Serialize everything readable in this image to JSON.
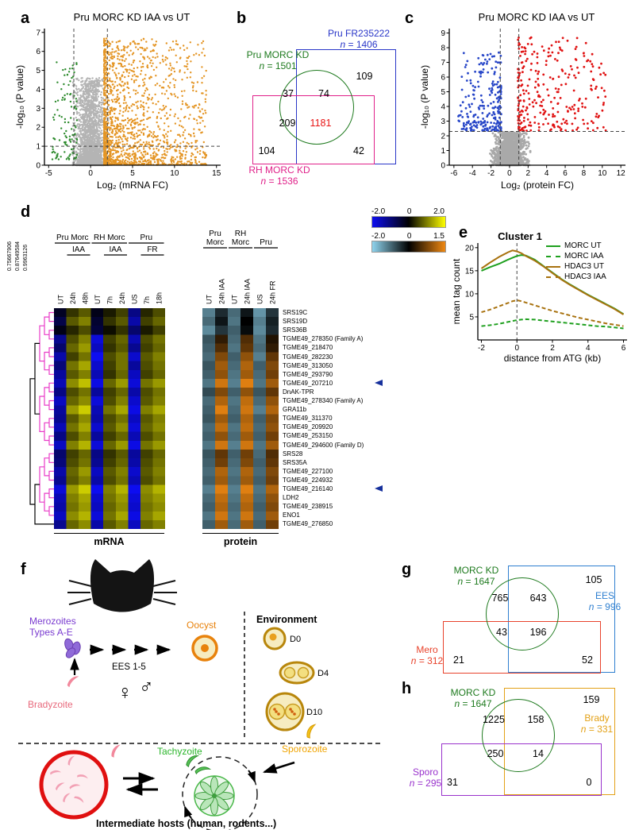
{
  "page": {
    "letters": {
      "a": "a",
      "b": "b",
      "c": "c",
      "d": "d",
      "e": "e",
      "f": "f",
      "g": "g",
      "h": "h"
    }
  },
  "chart_data": {
    "a": {
      "type": "scatter",
      "title": "Pru MORC KD IAA vs UT",
      "xlabel": "Log₂ (mRNA FC)",
      "ylabel": "-log₁₀ (P value)",
      "xlim": [
        -5.5,
        15.5
      ],
      "ylim": [
        0,
        7.2
      ],
      "xticks": [
        -5,
        0,
        5,
        10,
        15
      ],
      "yticks": [
        0,
        1,
        2,
        3,
        4,
        5,
        6,
        7
      ],
      "vlines": [
        -2,
        2
      ],
      "hlines": [
        1
      ],
      "seed": 11,
      "point_size": 2.4,
      "clusters": [
        {
          "label": "not significant",
          "color": "#b4b4b4",
          "n": 2600,
          "x": {
            "mode": "gauss",
            "mu": 0,
            "sigma": 0.85,
            "min": -2.1,
            "max": 2.1
          },
          "y": {
            "min": 0,
            "max": 4.6,
            "pow": 2.6
          }
        },
        {
          "label": "mRNA up",
          "color": "#e49524",
          "n": 1600,
          "x": {
            "mode": "skew",
            "min": 1.6,
            "max": 13.8,
            "pow": 2.2
          },
          "y": {
            "min": 0.02,
            "max": 6.7,
            "pow": 1.9
          }
        },
        {
          "label": "mRNA down",
          "color": "#2e8b2e",
          "n": 110,
          "x": {
            "mode": "skew",
            "min": -4.6,
            "max": -1.6,
            "pow": 1.4,
            "flip": true
          },
          "y": {
            "min": 0.3,
            "max": 5.6,
            "pow": 1.6
          }
        }
      ]
    },
    "c": {
      "type": "scatter",
      "title": "Pru MORC KD IAA vs UT",
      "xlabel": "Log₂ (protein FC)",
      "ylabel": "-log₁₀ (P value)",
      "xlim": [
        -6.5,
        12.5
      ],
      "ylim": [
        0,
        9.3
      ],
      "xticks": [
        -6,
        -4,
        -2,
        0,
        2,
        4,
        6,
        8,
        10,
        12
      ],
      "yticks": [
        0,
        1,
        2,
        3,
        4,
        5,
        6,
        7,
        8,
        9
      ],
      "vlines": [
        -1,
        1
      ],
      "hlines": [
        2.3
      ],
      "seed": 23,
      "point_size": 2.8,
      "clusters": [
        {
          "label": "not significant",
          "color": "#a9a9a9",
          "n": 1700,
          "x": {
            "mode": "gauss",
            "mu": 0,
            "sigma": 0.75,
            "min": -2.6,
            "max": 2.6
          },
          "y": {
            "min": 0,
            "max": 2.25,
            "pow": 2.0
          }
        },
        {
          "label": "protein down",
          "color": "#2746c8",
          "n": 240,
          "x": {
            "mode": "skew",
            "min": -5.7,
            "max": -0.9,
            "pow": 1.8,
            "flip": true
          },
          "y": {
            "min": 2.35,
            "max": 7.7,
            "pow": 1.7
          }
        },
        {
          "label": "protein up",
          "color": "#e01212",
          "n": 290,
          "x": {
            "mode": "skew",
            "min": 0.9,
            "max": 10.4,
            "pow": 1.6
          },
          "y": {
            "min": 2.35,
            "max": 8.7,
            "pow": 1.5
          }
        }
      ]
    },
    "d": {
      "type": "heatmap",
      "dendro_scale": [
        "0.75667906",
        "0.87649584",
        "0.9963126"
      ],
      "mrna_groups": [
        {
          "label": "Pru Morc",
          "c0": 0,
          "c1": 2
        },
        {
          "label": "RH Morc",
          "c0": 3,
          "c1": 5
        },
        {
          "label": "Pru",
          "c0": 6,
          "c1": 8
        }
      ],
      "mrna_subgroups": [
        {
          "label": "IAA",
          "c0": 1,
          "c1": 2
        },
        {
          "label": "IAA",
          "c0": 4,
          "c1": 5
        },
        {
          "label": "FR",
          "c0": 7,
          "c1": 8
        }
      ],
      "prot_groups": [
        {
          "line1": "Pru",
          "line2": "Morc",
          "c0": 0,
          "c1": 1
        },
        {
          "line1": "RH",
          "line2": "Morc",
          "c0": 2,
          "c1": 3
        },
        {
          "line1": "Pru",
          "line2": "",
          "c0": 4,
          "c1": 5
        }
      ],
      "mrna_cols": [
        "UT",
        "24h",
        "48h",
        "UT",
        "7h",
        "24h",
        "US",
        "7h",
        "18h"
      ],
      "prot_cols": [
        "UT",
        "24h IAA",
        "UT",
        "24h IAA",
        "US",
        "24h FR"
      ],
      "rows": [
        "SRS19C",
        "SRS19D",
        "SRS36B",
        "TGME49_278350 (Family A)",
        "TGME49_218470",
        "TGME49_282230",
        "TGME49_313050",
        "TGME49_293790",
        "TGME49_207210",
        "DnAK-TPR",
        "TGME49_278340 (Family A)",
        "GRA11b",
        "TGME49_311370",
        "TGME49_209920",
        "TGME49_253150",
        "TGME49_294600 (Family D)",
        "SRS28",
        "SRS35A",
        "TGME49_227100",
        "TGME49_224932",
        "TGME49_216140",
        "LDH2",
        "TGME49_238915",
        "ENO1",
        "TGME49_276850"
      ],
      "arrow_rows": [
        8,
        20
      ],
      "mrna_colors": {
        "neg": "#0d0df0",
        "pos": "#ffff00"
      },
      "prot_colors": {
        "neg": "#8fd4ee",
        "pos": "#ef8812"
      },
      "scale_mrna": [
        "-2.0",
        "0",
        "2.0"
      ],
      "scale_prot": [
        "-2.0",
        "0",
        "1.5"
      ],
      "footer_mrna": "mRNA",
      "footer_protein": "protein",
      "mrna_matrix": [
        [
          -0.3,
          0.4,
          0.7,
          -0.2,
          0.2,
          0.5,
          -1.1,
          0.3,
          0.6
        ],
        [
          -0.6,
          0.7,
          1.0,
          -0.4,
          0.4,
          0.7,
          -1.4,
          0.5,
          0.8
        ],
        [
          -0.2,
          0.3,
          0.6,
          -0.5,
          0.1,
          0.4,
          -0.9,
          0.2,
          0.5
        ],
        [
          -1.2,
          0.6,
          1.0,
          -1.8,
          0.5,
          0.8,
          -1.5,
          0.6,
          0.9
        ],
        [
          -0.9,
          0.8,
          1.2,
          -1.6,
          0.4,
          0.7,
          -1.2,
          0.5,
          0.8
        ],
        [
          -1.4,
          0.5,
          0.9,
          -2.0,
          0.6,
          0.9,
          -1.7,
          0.7,
          1.0
        ],
        [
          -1.0,
          0.9,
          1.3,
          -1.7,
          0.5,
          0.9,
          -1.3,
          0.6,
          0.9
        ],
        [
          -1.3,
          0.7,
          1.0,
          -1.5,
          0.4,
          0.8,
          -1.6,
          0.5,
          0.8
        ],
        [
          -1.5,
          1.1,
          1.5,
          -1.9,
          0.8,
          1.2,
          -1.8,
          0.9,
          1.2
        ],
        [
          -1.1,
          0.6,
          0.9,
          -1.3,
          0.5,
          0.8,
          -1.4,
          0.6,
          0.9
        ],
        [
          -1.6,
          0.8,
          1.1,
          -1.8,
          0.6,
          1.0,
          -1.7,
          0.7,
          1.0
        ],
        [
          -1.3,
          1.2,
          1.6,
          -1.5,
          0.9,
          1.3,
          -1.9,
          1.0,
          1.3
        ],
        [
          -1.2,
          0.7,
          1.1,
          -1.4,
          0.6,
          0.9,
          -1.6,
          0.7,
          1.0
        ],
        [
          -1.5,
          0.9,
          1.3,
          -1.7,
          0.7,
          1.1,
          -1.8,
          0.8,
          1.1
        ],
        [
          -1.1,
          0.6,
          1.0,
          -1.3,
          0.5,
          0.8,
          -1.5,
          0.6,
          0.9
        ],
        [
          -1.6,
          1.0,
          1.4,
          -1.8,
          0.8,
          1.2,
          -1.9,
          0.9,
          1.2
        ],
        [
          -0.9,
          0.5,
          0.8,
          -1.1,
          0.4,
          0.7,
          -1.3,
          0.5,
          0.8
        ],
        [
          -1.0,
          0.6,
          0.9,
          -1.2,
          0.5,
          0.8,
          -1.4,
          0.6,
          0.9
        ],
        [
          -1.4,
          0.8,
          1.2,
          -1.6,
          0.7,
          1.0,
          -1.7,
          0.7,
          1.0
        ],
        [
          -1.2,
          0.7,
          1.0,
          -1.4,
          0.6,
          0.9,
          -1.5,
          0.6,
          0.9
        ],
        [
          -1.8,
          1.2,
          1.6,
          -2.0,
          1.0,
          1.4,
          -2.0,
          1.1,
          1.4
        ],
        [
          -1.5,
          1.0,
          1.3,
          -1.7,
          0.9,
          1.2,
          -1.8,
          1.0,
          1.2
        ],
        [
          -1.4,
          0.9,
          1.2,
          -1.6,
          0.8,
          1.1,
          -1.7,
          0.9,
          1.1
        ],
        [
          -1.6,
          1.1,
          1.4,
          -1.8,
          0.9,
          1.3,
          -1.9,
          1.0,
          1.3
        ],
        [
          -1.2,
          0.8,
          1.1,
          -1.4,
          0.7,
          1.0,
          -1.6,
          0.8,
          1.0
        ]
      ],
      "prot_matrix": [
        [
          -1.2,
          -0.4,
          -1.0,
          -0.2,
          -1.4,
          -0.5
        ],
        [
          -1.0,
          -0.2,
          -1.1,
          0.0,
          -1.2,
          -0.3
        ],
        [
          -1.3,
          -0.5,
          -0.9,
          -0.1,
          -1.3,
          -0.4
        ],
        [
          -0.8,
          0.3,
          -1.0,
          0.5,
          -1.1,
          0.2
        ],
        [
          -0.9,
          0.5,
          -1.1,
          0.6,
          -1.0,
          0.3
        ],
        [
          -1.0,
          0.8,
          -0.9,
          0.9,
          -1.2,
          0.6
        ],
        [
          -0.8,
          1.0,
          -1.0,
          1.1,
          -0.9,
          0.8
        ],
        [
          -0.9,
          0.9,
          -1.1,
          1.0,
          -1.0,
          0.7
        ],
        [
          -1.1,
          1.3,
          -1.2,
          1.4,
          -1.1,
          1.0
        ],
        [
          -0.7,
          0.8,
          -0.9,
          0.9,
          -0.8,
          0.6
        ],
        [
          -1.0,
          1.1,
          -1.1,
          1.2,
          -1.0,
          0.9
        ],
        [
          -0.9,
          1.4,
          -1.0,
          1.3,
          -1.2,
          1.1
        ],
        [
          -0.8,
          1.0,
          -0.9,
          1.1,
          -0.9,
          0.8
        ],
        [
          -1.0,
          1.2,
          -1.1,
          1.2,
          -1.0,
          0.9
        ],
        [
          -0.9,
          0.9,
          -1.0,
          1.0,
          -0.9,
          0.7
        ],
        [
          -1.1,
          1.3,
          -1.2,
          1.3,
          -1.1,
          1.0
        ],
        [
          -0.8,
          0.6,
          -0.9,
          0.7,
          -1.0,
          0.5
        ],
        [
          -0.9,
          0.7,
          -1.0,
          0.8,
          -0.9,
          0.6
        ],
        [
          -1.0,
          1.1,
          -1.1,
          1.1,
          -1.0,
          0.8
        ],
        [
          -0.9,
          1.0,
          -1.0,
          1.0,
          -0.9,
          0.7
        ],
        [
          -1.2,
          1.4,
          -1.2,
          1.4,
          -1.1,
          1.1
        ],
        [
          -1.0,
          1.2,
          -1.1,
          1.2,
          -1.0,
          0.9
        ],
        [
          -0.9,
          1.1,
          -1.0,
          1.1,
          -0.9,
          0.8
        ],
        [
          -1.1,
          1.3,
          -1.1,
          1.3,
          -1.0,
          1.0
        ],
        [
          -0.9,
          1.0,
          -1.0,
          1.0,
          -0.9,
          0.7
        ]
      ]
    },
    "e": {
      "type": "line",
      "title": "Cluster 1",
      "xlabel": "distance from ATG (kb)",
      "ylabel": "mean tag count",
      "xlim": [
        -2.2,
        6.2
      ],
      "ylim": [
        0,
        21
      ],
      "xticks": [
        -2,
        0,
        2,
        4,
        6
      ],
      "yticks": [
        5,
        10,
        15,
        20
      ],
      "vline": 0,
      "x": [
        -2,
        -1.5,
        -1,
        -0.5,
        -0.25,
        0,
        0.25,
        0.5,
        1,
        1.5,
        2,
        2.5,
        3,
        3.5,
        4,
        4.5,
        5,
        5.5,
        6
      ],
      "series": [
        {
          "name": "MORC UT",
          "color": "#1fa01f",
          "dash": "solid",
          "values": [
            15,
            15.8,
            16.5,
            17.4,
            17.8,
            18.2,
            18.4,
            18.3,
            17.4,
            16,
            14.6,
            13.2,
            12,
            10.9,
            9.8,
            8.8,
            7.8,
            6.8,
            5.6
          ]
        },
        {
          "name": "MORC IAA",
          "color": "#1fa01f",
          "dash": "dashed",
          "values": [
            3,
            3.2,
            3.5,
            3.9,
            4.1,
            4.3,
            4.4,
            4.5,
            4.4,
            4.2,
            4,
            3.8,
            3.6,
            3.4,
            3.2,
            3,
            2.9,
            2.7,
            2.5
          ]
        },
        {
          "name": "HDAC3 UT",
          "color": "#a8720f",
          "dash": "solid",
          "values": [
            15.5,
            16.8,
            18,
            19,
            19.4,
            19.2,
            18.8,
            18.2,
            17.2,
            15.9,
            14.5,
            13.1,
            11.9,
            10.8,
            9.7,
            8.7,
            7.7,
            6.7,
            5.5
          ]
        },
        {
          "name": "HDAC3 IAA",
          "color": "#a8720f",
          "dash": "dashed",
          "values": [
            6,
            6.6,
            7.3,
            8,
            8.4,
            8.6,
            8.4,
            8.1,
            7.5,
            6.9,
            6.3,
            5.8,
            5.3,
            4.8,
            4.4,
            4,
            3.6,
            3.3,
            3
          ]
        }
      ]
    }
  },
  "venn": {
    "b": {
      "all_color": "#e81313",
      "sets": {
        "morc": {
          "name": "Pru MORC KD",
          "n_label": "n",
          "n_value": "= 1501",
          "color": "#1e7a1e"
        },
        "fr": {
          "name": "Pru FR235222",
          "n_label": "n",
          "n_value": "= 1406",
          "color": "#2936c8"
        },
        "rh": {
          "name": "RH MORC KD",
          "n_label": "n",
          "n_value": "= 1536",
          "color": "#e0218a"
        }
      },
      "regions": {
        "morc_only": "37",
        "morc_fr": "74",
        "fr_only": "109",
        "morc_rh": "209",
        "all": "1181",
        "rh_only": "104",
        "rh_fr": "42"
      }
    },
    "g": {
      "sets": {
        "morc": {
          "name": "MORC KD",
          "n_label": "n",
          "n_value": "= 1647",
          "color": "#1e7a1e"
        },
        "ees": {
          "name": "EES",
          "n_label": "n",
          "n_value": "= 996",
          "color": "#2e7fd0"
        },
        "mero": {
          "name": "Mero",
          "n_label": "n",
          "n_value": "= 312",
          "color": "#e8432c"
        }
      },
      "regions": {
        "morc_only": "765",
        "morc_ees": "643",
        "ees_only": "105",
        "morc_mero": "43",
        "all": "196",
        "mero_only": "21",
        "ees_mero": "52"
      }
    },
    "h": {
      "sets": {
        "morc": {
          "name": "MORC KD",
          "n_label": "n",
          "n_value": "= 1647",
          "color": "#1e7a1e"
        },
        "brady": {
          "name": "Brady",
          "n_label": "n",
          "n_value": "= 331",
          "color": "#e3a117"
        },
        "sporo": {
          "name": "Sporo",
          "n_label": "n",
          "n_value": "= 295",
          "color": "#9932cc"
        }
      },
      "regions": {
        "morc_only": "1225",
        "morc_brady": "158",
        "brady_only": "159",
        "morc_sporo": "250",
        "all": "14",
        "sporo_only": "31",
        "brady_sporo": "0"
      }
    }
  },
  "lifecycle": {
    "colors": {
      "merozoite": "#7a3bd0",
      "bradyzoite": "#e8697c",
      "tachyzoite": "#2ab52a",
      "sporozoite": "#f0a400",
      "oocyst": "#e8820c"
    },
    "labels": {
      "merozoites1": "Merozoites",
      "merozoites2": "Types A-E",
      "ees": "EES 1-5",
      "female": "♀",
      "male": "♂",
      "oocyst": "Oocyst",
      "environment": "Environment",
      "d0": "D0",
      "d4": "D4",
      "d10": "D10",
      "bradyzoite": "Bradyzoite",
      "tachyzoite": "Tachyzoite",
      "sporozoite": "Sporozoite",
      "hosts": "Intermediate hosts (human, rodents...)"
    }
  }
}
